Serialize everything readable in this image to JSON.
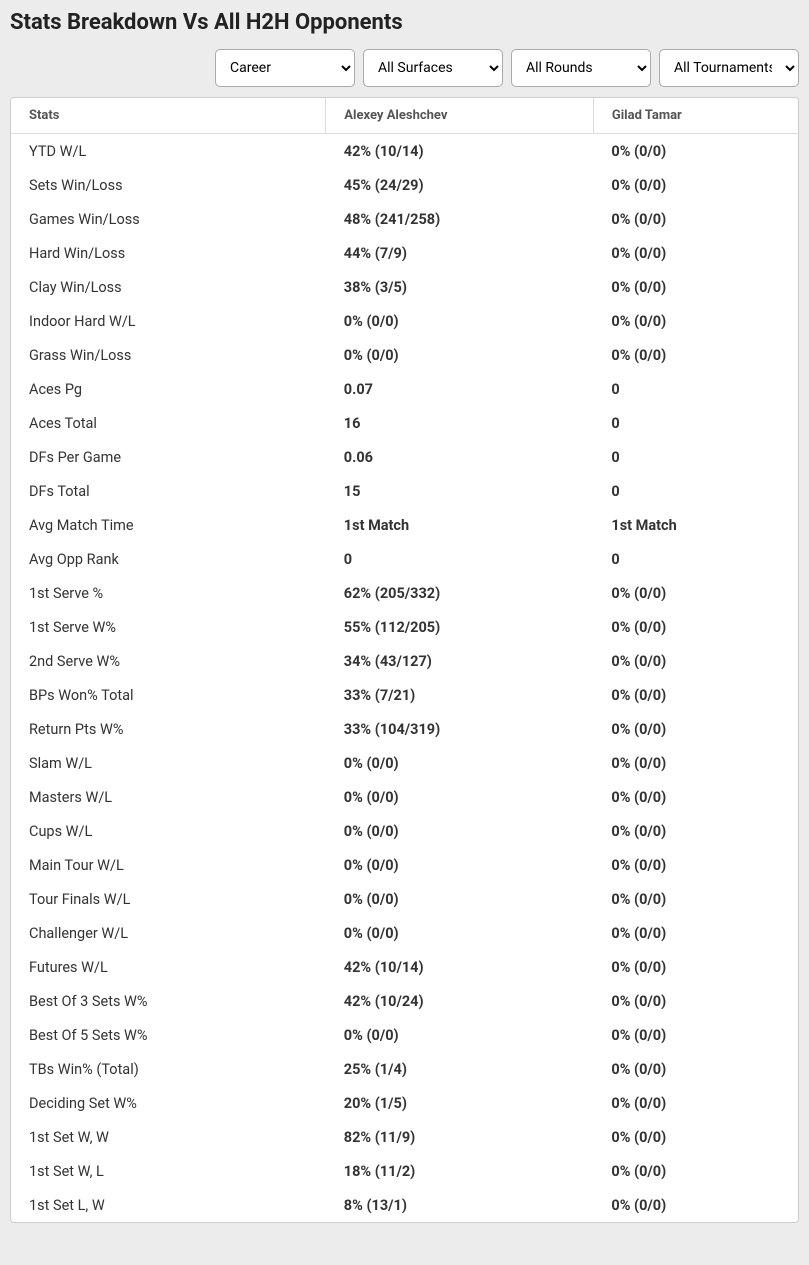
{
  "title": "Stats Breakdown Vs All H2H Opponents",
  "filters": {
    "period": {
      "selected": "Career",
      "options": [
        "Career"
      ]
    },
    "surface": {
      "selected": "All Surfaces",
      "options": [
        "All Surfaces"
      ]
    },
    "round": {
      "selected": "All Rounds",
      "options": [
        "All Rounds"
      ]
    },
    "tournament": {
      "selected": "All Tournaments",
      "options": [
        "All Tournaments"
      ]
    }
  },
  "columns": [
    "Stats",
    "Alexey Aleshchev",
    "Gilad Tamar"
  ],
  "col_widths": [
    "40%",
    "34%",
    "26%"
  ],
  "colors": {
    "page_bg": "#ececec",
    "card_bg": "#ffffff",
    "border": "#cccccc",
    "header_text": "#555555",
    "cell_text": "#333333"
  },
  "font_sizes": {
    "title": 22,
    "header": 13,
    "cell": 14.5,
    "select": 14
  },
  "rows": [
    {
      "stat": "YTD W/L",
      "p1": "42% (10/14)",
      "p2": "0% (0/0)"
    },
    {
      "stat": "Sets Win/Loss",
      "p1": "45% (24/29)",
      "p2": "0% (0/0)"
    },
    {
      "stat": "Games Win/Loss",
      "p1": "48% (241/258)",
      "p2": "0% (0/0)"
    },
    {
      "stat": "Hard Win/Loss",
      "p1": "44% (7/9)",
      "p2": "0% (0/0)"
    },
    {
      "stat": "Clay Win/Loss",
      "p1": "38% (3/5)",
      "p2": "0% (0/0)"
    },
    {
      "stat": "Indoor Hard W/L",
      "p1": "0% (0/0)",
      "p2": "0% (0/0)"
    },
    {
      "stat": "Grass Win/Loss",
      "p1": "0% (0/0)",
      "p2": "0% (0/0)"
    },
    {
      "stat": "Aces Pg",
      "p1": "0.07",
      "p2": "0"
    },
    {
      "stat": "Aces Total",
      "p1": "16",
      "p2": "0"
    },
    {
      "stat": "DFs Per Game",
      "p1": "0.06",
      "p2": "0"
    },
    {
      "stat": "DFs Total",
      "p1": "15",
      "p2": "0"
    },
    {
      "stat": "Avg Match Time",
      "p1": "1st Match",
      "p2": "1st Match"
    },
    {
      "stat": "Avg Opp Rank",
      "p1": "0",
      "p2": "0"
    },
    {
      "stat": "1st Serve %",
      "p1": "62% (205/332)",
      "p2": "0% (0/0)"
    },
    {
      "stat": "1st Serve W%",
      "p1": "55% (112/205)",
      "p2": "0% (0/0)"
    },
    {
      "stat": "2nd Serve W%",
      "p1": "34% (43/127)",
      "p2": "0% (0/0)"
    },
    {
      "stat": "BPs Won% Total",
      "p1": "33% (7/21)",
      "p2": "0% (0/0)"
    },
    {
      "stat": "Return Pts W%",
      "p1": "33% (104/319)",
      "p2": "0% (0/0)"
    },
    {
      "stat": "Slam W/L",
      "p1": "0% (0/0)",
      "p2": "0% (0/0)"
    },
    {
      "stat": "Masters W/L",
      "p1": "0% (0/0)",
      "p2": "0% (0/0)"
    },
    {
      "stat": "Cups W/L",
      "p1": "0% (0/0)",
      "p2": "0% (0/0)"
    },
    {
      "stat": "Main Tour W/L",
      "p1": "0% (0/0)",
      "p2": "0% (0/0)"
    },
    {
      "stat": "Tour Finals W/L",
      "p1": "0% (0/0)",
      "p2": "0% (0/0)"
    },
    {
      "stat": "Challenger W/L",
      "p1": "0% (0/0)",
      "p2": "0% (0/0)"
    },
    {
      "stat": "Futures W/L",
      "p1": "42% (10/14)",
      "p2": "0% (0/0)"
    },
    {
      "stat": "Best Of 3 Sets W%",
      "p1": "42% (10/24)",
      "p2": "0% (0/0)"
    },
    {
      "stat": "Best Of 5 Sets W%",
      "p1": "0% (0/0)",
      "p2": "0% (0/0)"
    },
    {
      "stat": "TBs Win% (Total)",
      "p1": "25% (1/4)",
      "p2": "0% (0/0)"
    },
    {
      "stat": "Deciding Set W%",
      "p1": "20% (1/5)",
      "p2": "0% (0/0)"
    },
    {
      "stat": "1st Set W, W",
      "p1": "82% (11/9)",
      "p2": "0% (0/0)"
    },
    {
      "stat": "1st Set W, L",
      "p1": "18% (11/2)",
      "p2": "0% (0/0)"
    },
    {
      "stat": "1st Set L, W",
      "p1": "8% (13/1)",
      "p2": "0% (0/0)"
    }
  ]
}
